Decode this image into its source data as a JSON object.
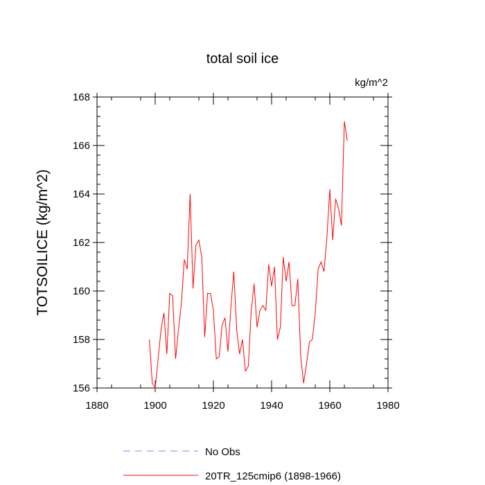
{
  "chart_data": {
    "type": "line",
    "title": "total soil ice",
    "units_label": "kg/m^2",
    "ylabel": "TOTSOILICE  (kg/m^2)",
    "xlabel": "",
    "xlim": [
      1880,
      1980
    ],
    "ylim": [
      156,
      168
    ],
    "xticks": [
      1880,
      1900,
      1920,
      1940,
      1960,
      1980
    ],
    "yticks": [
      156,
      158,
      160,
      162,
      164,
      166,
      168
    ],
    "xtick_labels": [
      "1880",
      "1900",
      "1920",
      "1940",
      "1960",
      "1980"
    ],
    "ytick_labels": [
      "156",
      "158",
      "160",
      "162",
      "164",
      "166",
      "168"
    ],
    "series": [
      {
        "name": "20TR_125cmip6 (1898-1966)",
        "color": "#ff0000",
        "x": [
          1898,
          1899,
          1900,
          1901,
          1902,
          1903,
          1904,
          1905,
          1906,
          1907,
          1908,
          1909,
          1910,
          1911,
          1912,
          1913,
          1914,
          1915,
          1916,
          1917,
          1918,
          1919,
          1920,
          1921,
          1922,
          1923,
          1924,
          1925,
          1926,
          1927,
          1928,
          1929,
          1930,
          1931,
          1932,
          1933,
          1934,
          1935,
          1936,
          1937,
          1938,
          1939,
          1940,
          1941,
          1942,
          1943,
          1944,
          1945,
          1946,
          1947,
          1948,
          1949,
          1950,
          1951,
          1952,
          1953,
          1954,
          1955,
          1956,
          1957,
          1958,
          1959,
          1960,
          1961,
          1962,
          1963,
          1964,
          1965,
          1966
        ],
        "values": [
          158.0,
          156.2,
          156.0,
          157.2,
          158.4,
          159.1,
          157.4,
          159.9,
          159.8,
          157.2,
          158.4,
          159.5,
          161.3,
          160.9,
          164.0,
          160.1,
          161.9,
          162.1,
          161.4,
          158.1,
          159.9,
          159.9,
          159.2,
          157.2,
          157.3,
          158.6,
          158.9,
          157.5,
          159.3,
          160.8,
          158.4,
          157.4,
          158.0,
          156.7,
          156.9,
          159.2,
          160.3,
          158.5,
          159.2,
          159.4,
          159.2,
          161.1,
          160.2,
          161.0,
          158.0,
          158.5,
          161.4,
          160.4,
          161.2,
          159.4,
          159.4,
          160.5,
          157.3,
          156.2,
          157.0,
          157.9,
          158.0,
          159.1,
          160.9,
          161.2,
          160.8,
          162.2,
          164.2,
          162.1,
          163.8,
          163.4,
          162.7,
          167.0,
          166.2
        ]
      },
      {
        "name": "No Obs",
        "color": "#8080ff",
        "x": [],
        "values": []
      }
    ],
    "legend": [
      {
        "label": "No Obs",
        "style": "dashed",
        "color": "#8080ff"
      },
      {
        "label": "20TR_125cmip6 (1898-1966)",
        "style": "solid",
        "color": "#ff0000"
      }
    ]
  }
}
